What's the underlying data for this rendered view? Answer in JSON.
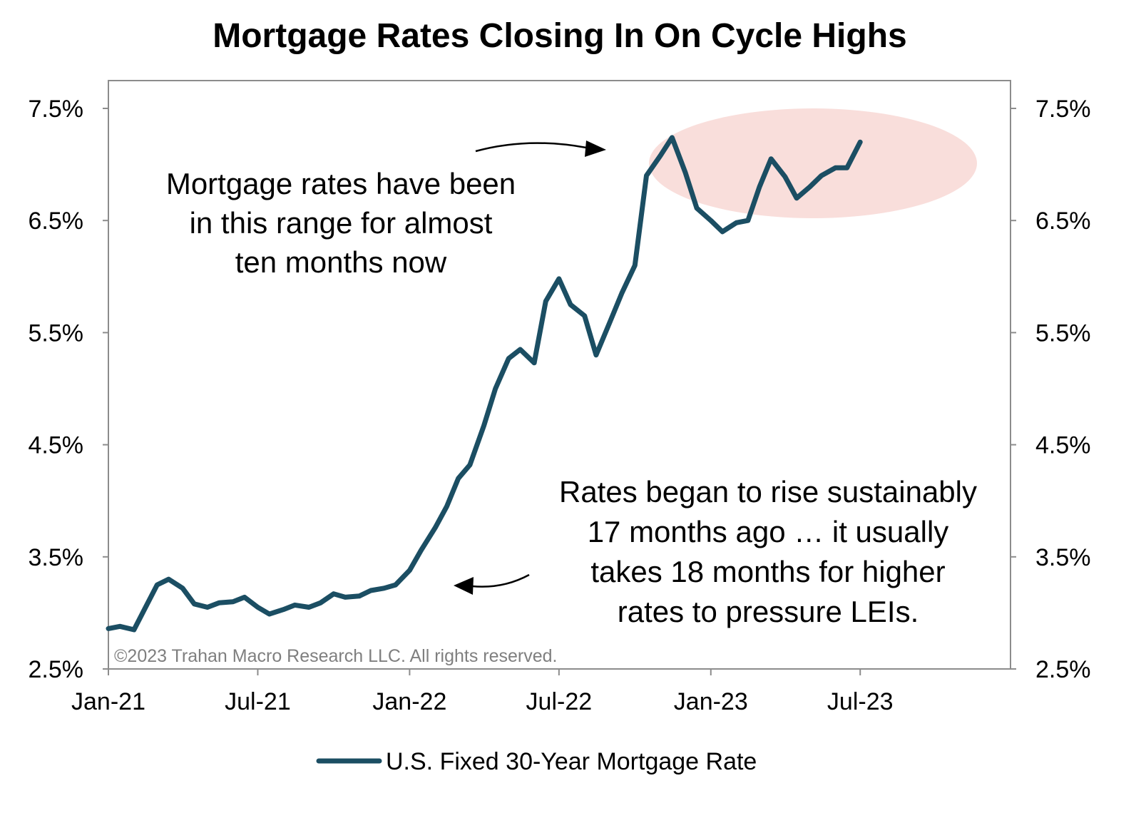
{
  "chart_data": {
    "type": "line",
    "title": "Mortgage Rates Closing In On Cycle Highs",
    "xlabel": "",
    "ylabel": "",
    "ylim": [
      2.5,
      7.5
    ],
    "y_ticks": [
      2.5,
      3.5,
      4.5,
      5.5,
      6.5,
      7.5
    ],
    "y_tick_labels": [
      "2.5%",
      "3.5%",
      "4.5%",
      "5.5%",
      "6.5%",
      "7.5%"
    ],
    "y_ticks_right": true,
    "xlim": [
      "2021-01-01",
      "2023-12-31"
    ],
    "x_ticks": [
      "2021-01-01",
      "2021-07-01",
      "2022-01-01",
      "2022-07-01",
      "2023-01-01",
      "2023-07-01"
    ],
    "x_tick_labels": [
      "Jan-21",
      "Jul-21",
      "Jan-22",
      "Jul-22",
      "Jan-23",
      "Jul-23"
    ],
    "grid": false,
    "legend_position": "bottom-center",
    "series": [
      {
        "name": "U.S. Fixed 30-Year Mortgage Rate",
        "color": "#1b4e63",
        "x": [
          "2021-01-01",
          "2021-01-15",
          "2021-02-01",
          "2021-02-15",
          "2021-03-01",
          "2021-03-15",
          "2021-04-01",
          "2021-04-15",
          "2021-05-01",
          "2021-05-15",
          "2021-06-01",
          "2021-06-15",
          "2021-07-01",
          "2021-07-15",
          "2021-08-01",
          "2021-08-15",
          "2021-09-01",
          "2021-09-15",
          "2021-10-01",
          "2021-10-15",
          "2021-11-01",
          "2021-11-15",
          "2021-12-01",
          "2021-12-15",
          "2022-01-01",
          "2022-01-15",
          "2022-02-01",
          "2022-02-15",
          "2022-03-01",
          "2022-03-15",
          "2022-04-01",
          "2022-04-15",
          "2022-05-01",
          "2022-05-15",
          "2022-06-01",
          "2022-06-15",
          "2022-07-01",
          "2022-07-15",
          "2022-08-01",
          "2022-08-15",
          "2022-09-01",
          "2022-09-15",
          "2022-10-01",
          "2022-10-15",
          "2022-11-01",
          "2022-11-15",
          "2022-12-01",
          "2022-12-15",
          "2023-01-01",
          "2023-01-15",
          "2023-02-01",
          "2023-02-15",
          "2023-03-01",
          "2023-03-15",
          "2023-04-01",
          "2023-04-15",
          "2023-05-01",
          "2023-05-15",
          "2023-06-01",
          "2023-06-15",
          "2023-07-01"
        ],
        "values": [
          2.86,
          2.88,
          2.85,
          3.05,
          3.25,
          3.3,
          3.22,
          3.08,
          3.05,
          3.09,
          3.1,
          3.14,
          3.05,
          2.99,
          3.03,
          3.07,
          3.05,
          3.09,
          3.17,
          3.14,
          3.15,
          3.2,
          3.22,
          3.25,
          3.38,
          3.56,
          3.76,
          3.95,
          4.2,
          4.32,
          4.67,
          5.0,
          5.27,
          5.35,
          5.23,
          5.78,
          5.98,
          5.75,
          5.65,
          5.3,
          5.6,
          5.85,
          6.1,
          6.9,
          7.08,
          7.24,
          6.93,
          6.61,
          6.5,
          6.4,
          6.48,
          6.5,
          6.8,
          7.05,
          6.89,
          6.7,
          6.8,
          6.9,
          6.97,
          6.97,
          7.2
        ]
      }
    ],
    "annotations": [
      {
        "lines": [
          "Mortgage rates have been",
          "in this range for almost",
          "ten months now"
        ]
      },
      {
        "lines": [
          "Rates began to rise sustainably",
          "17 months ago … it usually",
          "takes 18 months for higher",
          "rates to pressure LEIs."
        ]
      }
    ],
    "copyright": "©2023 Trahan Macro Research LLC. All rights reserved.",
    "highlight_color": "#f9dedb"
  }
}
